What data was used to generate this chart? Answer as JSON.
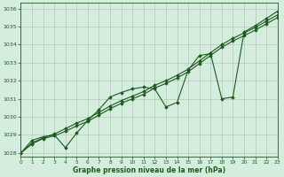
{
  "title": "",
  "xlabel": "Graphe pression niveau de la mer (hPa)",
  "bg_color": "#d4eedd",
  "grid_color": "#b8c8b8",
  "line_color": "#1a5c1a",
  "marker": "D",
  "markersize": 1.8,
  "linewidth": 0.8,
  "xlim": [
    0,
    23
  ],
  "ylim": [
    1027.8,
    1036.3
  ],
  "yticks": [
    1028,
    1029,
    1030,
    1031,
    1032,
    1033,
    1034,
    1035,
    1036
  ],
  "xticks": [
    0,
    1,
    2,
    3,
    4,
    5,
    6,
    7,
    8,
    9,
    10,
    11,
    12,
    13,
    14,
    15,
    16,
    17,
    18,
    19,
    20,
    21,
    22,
    23
  ],
  "line_main": [
    1028.0,
    1028.7,
    1028.9,
    1029.0,
    1028.3,
    1029.1,
    1029.8,
    1030.4,
    1031.1,
    1031.35,
    1031.55,
    1031.65,
    1031.55,
    1030.55,
    1030.8,
    1032.6,
    1033.4,
    1033.5,
    1031.0,
    1031.1,
    1034.7,
    1035.05,
    1035.45,
    1035.85
  ],
  "line_smooth1": [
    1028.0,
    1028.55,
    1028.85,
    1029.05,
    1029.35,
    1029.65,
    1029.9,
    1030.25,
    1030.6,
    1030.9,
    1031.15,
    1031.4,
    1031.75,
    1032.0,
    1032.3,
    1032.65,
    1033.1,
    1033.55,
    1034.0,
    1034.35,
    1034.65,
    1034.95,
    1035.3,
    1035.65
  ],
  "line_smooth2": [
    1028.0,
    1028.5,
    1028.8,
    1028.95,
    1029.2,
    1029.5,
    1029.75,
    1030.1,
    1030.45,
    1030.75,
    1031.0,
    1031.25,
    1031.6,
    1031.85,
    1032.15,
    1032.5,
    1032.95,
    1033.4,
    1033.85,
    1034.2,
    1034.5,
    1034.8,
    1035.15,
    1035.5
  ]
}
